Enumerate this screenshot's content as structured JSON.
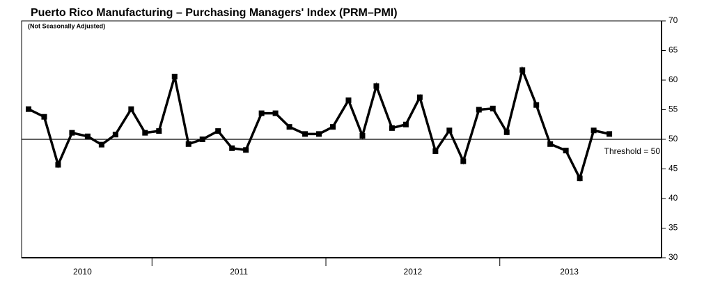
{
  "chart_data": {
    "type": "line",
    "title": "Puerto Rico Manufacturing – Purchasing Managers' Index (PRM–PMI)",
    "subtitle": "(Not Seasonally Adjusted)",
    "x": [
      2010.29,
      2010.38,
      2010.46,
      2010.54,
      2010.63,
      2010.71,
      2010.79,
      2010.88,
      2010.96,
      2011.04,
      2011.13,
      2011.21,
      2011.29,
      2011.38,
      2011.46,
      2011.54,
      2011.63,
      2011.71,
      2011.79,
      2011.88,
      2011.96,
      2012.04,
      2012.13,
      2012.21,
      2012.29,
      2012.38,
      2012.46,
      2012.54,
      2012.63,
      2012.71,
      2012.79,
      2012.88,
      2012.96,
      2013.04,
      2013.13,
      2013.21,
      2013.29,
      2013.38,
      2013.46,
      2013.54,
      2013.63
    ],
    "series": [
      {
        "name": "PRM-PMI",
        "color": "#000000",
        "values": [
          55.1,
          53.8,
          45.7,
          51.1,
          50.5,
          49.1,
          50.8,
          55.1,
          51.1,
          51.4,
          60.6,
          49.2,
          50.0,
          51.4,
          48.5,
          48.2,
          54.4,
          54.4,
          52.1,
          50.9,
          50.9,
          52.1,
          56.6,
          50.6,
          59.0,
          51.9,
          52.5,
          57.1,
          48.0,
          51.5,
          46.3,
          55.0,
          55.2,
          51.2,
          61.7,
          55.8,
          49.2,
          48.1,
          43.4,
          51.5,
          50.9
        ]
      }
    ],
    "xlim": [
      2010.25,
      2013.93
    ],
    "xticks": [
      {
        "value": 2010.6,
        "label": "2010"
      },
      {
        "value": 2011.5,
        "label": "2011"
      },
      {
        "value": 2012.5,
        "label": "2012"
      },
      {
        "value": 2013.4,
        "label": "2013"
      }
    ],
    "xminor": [
      2011,
      2012,
      2013
    ],
    "ylim": [
      30,
      70
    ],
    "yticks": [
      30,
      35,
      40,
      45,
      50,
      55,
      60,
      65,
      70
    ],
    "threshold": {
      "value": 50,
      "label": "Threshold = 50"
    },
    "grid": false
  }
}
